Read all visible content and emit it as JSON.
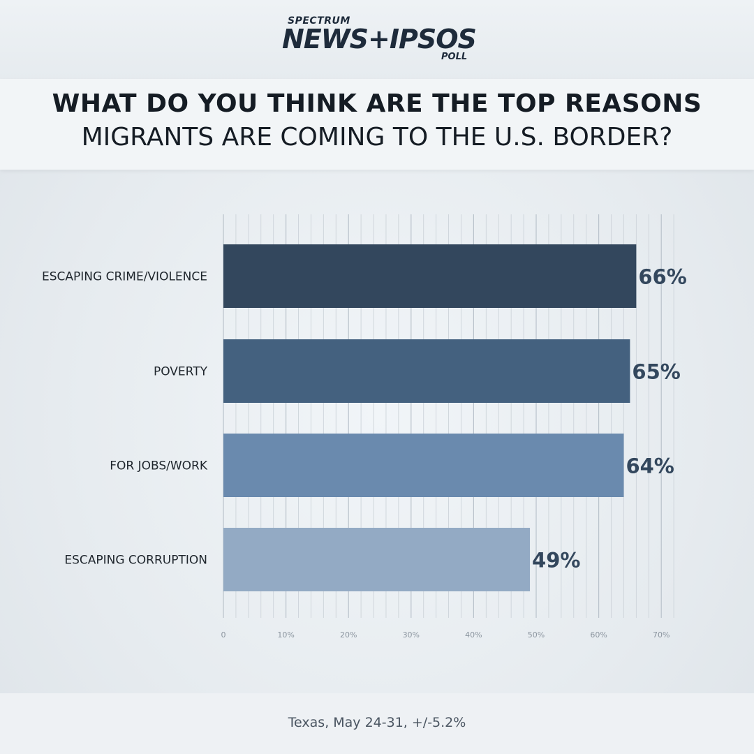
{
  "logo": {
    "top": "SPECTRUM",
    "main": "NEWS+IPSOS",
    "poll": "POLL"
  },
  "title": {
    "line1": "WHAT DO YOU THINK ARE THE TOP REASONS",
    "line2": "MIGRANTS ARE COMING TO THE U.S. BORDER?"
  },
  "chart_data": {
    "type": "bar",
    "orientation": "horizontal",
    "categories": [
      "ESCAPING CRIME/VIOLENCE",
      "POVERTY",
      "FOR JOBS/WORK",
      "ESCAPING CORRUPTION"
    ],
    "values": [
      66,
      65,
      64,
      49
    ],
    "value_labels": [
      "66%",
      "65%",
      "64%",
      "49%"
    ],
    "bar_colors": [
      "#33475d",
      "#44617f",
      "#6a8aae",
      "#93aac4"
    ],
    "xlim": [
      0,
      72
    ],
    "x_ticks": [
      0,
      10,
      20,
      30,
      40,
      50,
      60,
      70
    ],
    "x_tick_labels": [
      "0",
      "10%",
      "20%",
      "30%",
      "40%",
      "50%",
      "60%",
      "70%"
    ],
    "grid": true
  },
  "footer": {
    "note": "Texas, May 24-31, +/-5.2%"
  }
}
